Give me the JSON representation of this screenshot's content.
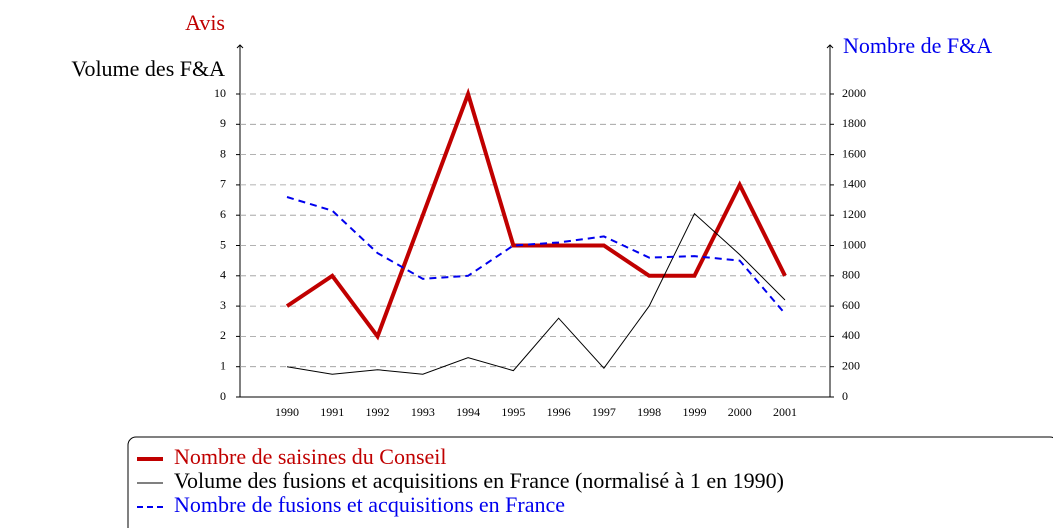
{
  "chart_data": {
    "type": "line",
    "ylabel": "Avis",
    "ylabel_secondary": "Volume des F&A",
    "y2label": "Nombre de F&A",
    "categories": [
      "1990",
      "1991",
      "1992",
      "1993",
      "1994",
      "1995",
      "1996",
      "1997",
      "1998",
      "1999",
      "2000",
      "2001"
    ],
    "series": [
      {
        "name": "Nombre de saisines du Conseil",
        "color": "#c00000",
        "style": "solid-thick",
        "axis": "y",
        "values": [
          3,
          4,
          2,
          6,
          10,
          5,
          5,
          5,
          4,
          4,
          7,
          4
        ]
      },
      {
        "name": "Volume des fusions et acquisitions en France (normalisé à 1 en 1990)",
        "color": "#000000",
        "style": "solid-thin",
        "axis": "y",
        "values": [
          1,
          0.75,
          0.9,
          0.75,
          1.3,
          0.87,
          2.6,
          0.95,
          3,
          6.05,
          4.7,
          3.2
        ]
      },
      {
        "name": "Nombre de fusions et acquisitions en France",
        "color": "#0000ee",
        "style": "dashed",
        "axis": "y2",
        "values": [
          1320,
          1230,
          950,
          780,
          800,
          1000,
          1020,
          1060,
          920,
          930,
          900,
          550
        ]
      }
    ],
    "ylim": [
      0,
      10
    ],
    "yticks": [
      0,
      1,
      2,
      3,
      4,
      5,
      6,
      7,
      8,
      9,
      10
    ],
    "y2lim": [
      0,
      2000
    ],
    "y2ticks": [
      0,
      200,
      400,
      600,
      800,
      1000,
      1200,
      1400,
      1600,
      1800,
      2000
    ],
    "grid": true
  }
}
